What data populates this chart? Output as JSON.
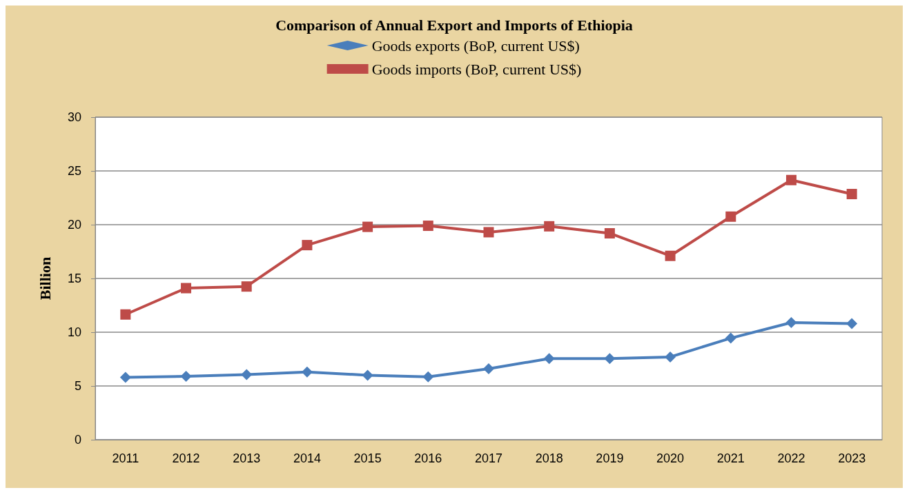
{
  "chart_data": {
    "type": "line",
    "title": "Comparison of Annual Export and Imports of Ethiopia",
    "ylabel": "Billion",
    "categories": [
      "2011",
      "2012",
      "2013",
      "2014",
      "2015",
      "2016",
      "2017",
      "2018",
      "2019",
      "2020",
      "2021",
      "2022",
      "2023"
    ],
    "series": [
      {
        "name": "Goods exports (BoP, current US$)",
        "color": "#4a7ebb",
        "marker": "diamond",
        "values": [
          5.8,
          5.9,
          6.05,
          6.3,
          6.0,
          5.85,
          6.6,
          7.55,
          7.55,
          7.7,
          9.45,
          10.9,
          10.8
        ]
      },
      {
        "name": "Goods imports (BoP, current US$)",
        "color": "#be4b48",
        "marker": "square",
        "values": [
          11.65,
          14.1,
          14.25,
          18.1,
          19.8,
          19.9,
          19.3,
          19.85,
          19.2,
          17.1,
          20.75,
          24.15,
          22.85
        ]
      }
    ],
    "ylim": [
      0,
      30
    ],
    "yticks": [
      0,
      5,
      10,
      15,
      20,
      25,
      30
    ],
    "grid": "y",
    "legend": "top",
    "line_style": "solid"
  }
}
